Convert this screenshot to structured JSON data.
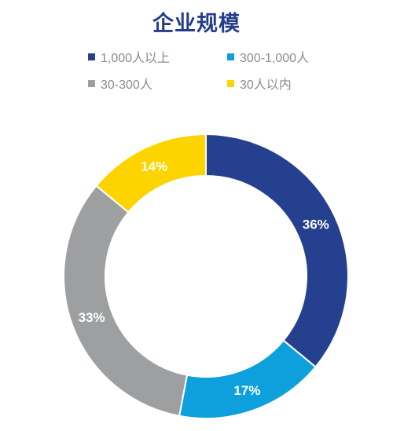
{
  "chart_data": {
    "type": "pie",
    "title": "企业规模",
    "donut": true,
    "legend_placement": "top",
    "series": [
      {
        "name": "",
        "values": [
          36,
          17,
          33,
          14
        ],
        "data_labels": [
          "36%",
          "17%",
          "33%",
          "14%"
        ]
      }
    ],
    "categories": [
      "1,000人以上",
      "300-1,000人",
      "30-300人",
      "30人以内"
    ],
    "colors": [
      "#24408f",
      "#0da0dd",
      "#9d9fa1",
      "#fdd400"
    ]
  },
  "theme": {
    "title_color": "#243c8c",
    "legend_text_color": "#8c8c8c"
  }
}
